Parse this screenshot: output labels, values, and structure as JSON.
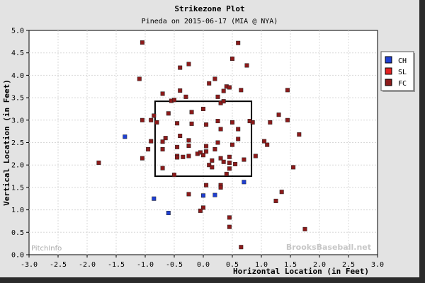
{
  "chart_data": {
    "type": "scatter",
    "title": "Strikezone Plot",
    "subtitle": "Pineda on 2015-06-17 (MIA @ NYA)",
    "xlabel": "Horizontal Location (in Feet)",
    "ylabel": "Vertical Location (in Feet)",
    "xlim": [
      -3.0,
      3.0
    ],
    "ylim": [
      0.0,
      5.0
    ],
    "x_ticks": [
      "-3.0",
      "-2.5",
      "-2.0",
      "-1.5",
      "-1.0",
      "-0.5",
      "0.0",
      "0.5",
      "1.0",
      "1.5",
      "2.0",
      "2.5",
      "3.0"
    ],
    "y_ticks": [
      "0.0",
      "0.5",
      "1.0",
      "1.5",
      "2.0",
      "2.5",
      "3.0",
      "3.5",
      "4.0",
      "4.5",
      "5.0"
    ],
    "grid": true,
    "legend_position": "right",
    "strike_zone": {
      "x": [
        -0.83,
        0.83
      ],
      "y": [
        1.75,
        3.42
      ]
    },
    "watermarks": {
      "left": "PitchInfo",
      "right": "BrooksBaseball.net"
    },
    "series": [
      {
        "name": "CH",
        "color": "#1f3fd1",
        "points": [
          [
            -1.35,
            2.63
          ],
          [
            -0.85,
            1.25
          ],
          [
            -0.6,
            0.93
          ],
          [
            0.0,
            1.32
          ],
          [
            0.2,
            1.33
          ],
          [
            0.7,
            1.62
          ]
        ]
      },
      {
        "name": "SL",
        "color": "#e32222",
        "points": []
      },
      {
        "name": "FC",
        "color": "#8c1a1a",
        "points": [
          [
            -1.05,
            4.73
          ],
          [
            -1.1,
            3.92
          ],
          [
            -0.25,
            4.25
          ],
          [
            -0.4,
            4.17
          ],
          [
            0.2,
            3.92
          ],
          [
            0.5,
            4.37
          ],
          [
            0.6,
            4.72
          ],
          [
            0.75,
            4.22
          ],
          [
            0.1,
            3.82
          ],
          [
            0.4,
            3.75
          ],
          [
            0.45,
            3.73
          ],
          [
            0.35,
            3.65
          ],
          [
            0.65,
            3.67
          ],
          [
            1.45,
            3.67
          ],
          [
            -0.7,
            3.59
          ],
          [
            -0.4,
            3.66
          ],
          [
            -0.3,
            3.52
          ],
          [
            -0.55,
            3.43
          ],
          [
            -0.5,
            3.45
          ],
          [
            0.25,
            3.52
          ],
          [
            0.3,
            3.38
          ],
          [
            0.35,
            3.42
          ],
          [
            -0.2,
            3.18
          ],
          [
            0.0,
            3.25
          ],
          [
            -0.85,
            3.1
          ],
          [
            -0.9,
            3.0
          ],
          [
            -1.05,
            3.0
          ],
          [
            -0.8,
            2.95
          ],
          [
            -0.6,
            3.15
          ],
          [
            -0.45,
            2.93
          ],
          [
            -0.2,
            2.92
          ],
          [
            0.05,
            2.9
          ],
          [
            0.25,
            2.98
          ],
          [
            0.5,
            2.95
          ],
          [
            0.85,
            2.95
          ],
          [
            0.8,
            2.98
          ],
          [
            1.15,
            2.95
          ],
          [
            1.3,
            3.12
          ],
          [
            1.45,
            3.0
          ],
          [
            -0.4,
            2.65
          ],
          [
            -0.65,
            2.6
          ],
          [
            -0.25,
            2.55
          ],
          [
            0.3,
            2.8
          ],
          [
            0.6,
            2.8
          ],
          [
            0.6,
            2.58
          ],
          [
            1.65,
            2.68
          ],
          [
            -0.7,
            2.52
          ],
          [
            -0.9,
            2.53
          ],
          [
            -0.45,
            2.4
          ],
          [
            -0.25,
            2.43
          ],
          [
            0.05,
            2.42
          ],
          [
            0.25,
            2.5
          ],
          [
            0.5,
            2.45
          ],
          [
            1.05,
            2.53
          ],
          [
            1.1,
            2.45
          ],
          [
            -1.05,
            2.15
          ],
          [
            -0.95,
            2.35
          ],
          [
            -0.7,
            2.35
          ],
          [
            -0.45,
            2.2
          ],
          [
            -0.35,
            2.18
          ],
          [
            -0.45,
            2.17
          ],
          [
            -0.25,
            2.2
          ],
          [
            -0.1,
            2.25
          ],
          [
            -0.05,
            2.28
          ],
          [
            0.0,
            2.22
          ],
          [
            0.05,
            2.3
          ],
          [
            0.2,
            2.35
          ],
          [
            0.3,
            2.15
          ],
          [
            0.45,
            2.18
          ],
          [
            0.15,
            2.1
          ],
          [
            0.35,
            2.07
          ],
          [
            0.1,
            2.0
          ],
          [
            0.15,
            1.95
          ],
          [
            0.45,
            2.05
          ],
          [
            0.55,
            2.02
          ],
          [
            0.7,
            2.12
          ],
          [
            0.9,
            2.2
          ],
          [
            -0.7,
            1.93
          ],
          [
            -0.5,
            1.78
          ],
          [
            -1.8,
            2.05
          ],
          [
            0.05,
            1.55
          ],
          [
            0.3,
            1.55
          ],
          [
            0.4,
            1.8
          ],
          [
            0.45,
            1.92
          ],
          [
            1.55,
            1.95
          ],
          [
            -0.25,
            1.35
          ],
          [
            0.3,
            1.5
          ],
          [
            1.35,
            1.4
          ],
          [
            1.25,
            1.2
          ],
          [
            0.0,
            1.05
          ],
          [
            -0.05,
            0.98
          ],
          [
            0.45,
            0.83
          ],
          [
            0.45,
            0.62
          ],
          [
            1.75,
            0.57
          ],
          [
            0.65,
            0.17
          ]
        ]
      }
    ]
  }
}
